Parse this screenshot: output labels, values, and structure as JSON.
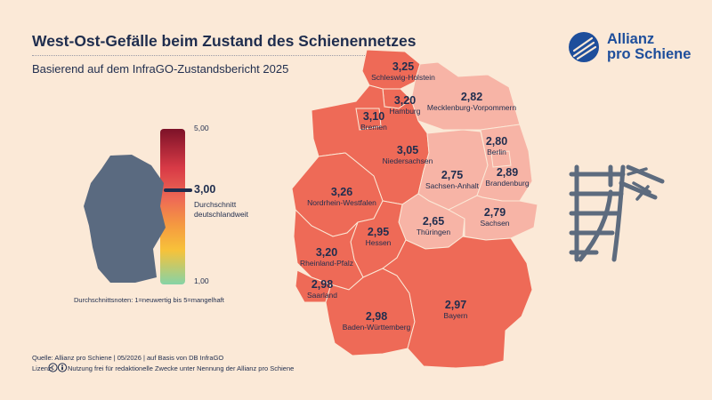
{
  "header": {
    "title": "West-Ost-Gefälle beim Zustand des Schienennetzes",
    "subtitle": "Basierend auf dem InfraGO-Zustandsbericht 2025"
  },
  "logo": {
    "line1": "Allianz",
    "line2": "pro Schiene",
    "icon": "allianz-pro-schiene-logo"
  },
  "scale": {
    "max_label": "5,00",
    "min_label": "1,00",
    "average_value": "3,00",
    "average_line1": "Durchschnitt",
    "average_line2": "deutschlandweit",
    "note": "Durchschnittsnoten: 1=neuwertig bis 5=mangelhaft",
    "max": 5,
    "min": 1,
    "average": 3
  },
  "regions": [
    {
      "name": "Schleswig-Holstein",
      "value": "3,25",
      "score": 3.25
    },
    {
      "name": "Hamburg",
      "value": "3,20",
      "score": 3.2
    },
    {
      "name": "Mecklenburg-Vorpommern",
      "value": "2,82",
      "score": 2.82
    },
    {
      "name": "Bremen",
      "value": "3,10",
      "score": 3.1
    },
    {
      "name": "Niedersachsen",
      "value": "3,05",
      "score": 3.05
    },
    {
      "name": "Berlin",
      "value": "2,80",
      "score": 2.8
    },
    {
      "name": "Sachsen-Anhalt",
      "value": "2,75",
      "score": 2.75
    },
    {
      "name": "Brandenburg",
      "value": "2,89",
      "score": 2.89
    },
    {
      "name": "Nordrhein-Westfalen",
      "value": "3,26",
      "score": 3.26
    },
    {
      "name": "Thüringen",
      "value": "2,65",
      "score": 2.65
    },
    {
      "name": "Sachsen",
      "value": "2,79",
      "score": 2.79
    },
    {
      "name": "Hessen",
      "value": "2,95",
      "score": 2.95
    },
    {
      "name": "Rheinland-Pfalz",
      "value": "3,20",
      "score": 3.2
    },
    {
      "name": "Saarland",
      "value": "2,98",
      "score": 2.98
    },
    {
      "name": "Bayern",
      "value": "2,97",
      "score": 2.97
    },
    {
      "name": "Baden-Württemberg",
      "value": "2,98",
      "score": 2.98
    }
  ],
  "footer": {
    "source": "Quelle: Allianz pro Schiene | 05/2026 | auf Basis von DB InfraGO",
    "license_label": "Lizenz:",
    "license_text": "Nutzung frei für redaktionelle Zwecke unter Nennung der Allianz pro Schiene"
  },
  "colors": {
    "background": "#fbe9d7",
    "text": "#1f2d4e",
    "brand": "#1e4e9b",
    "west": "#ee6a57",
    "east": "#f7b4a6",
    "icon": "#5d6b7e"
  }
}
